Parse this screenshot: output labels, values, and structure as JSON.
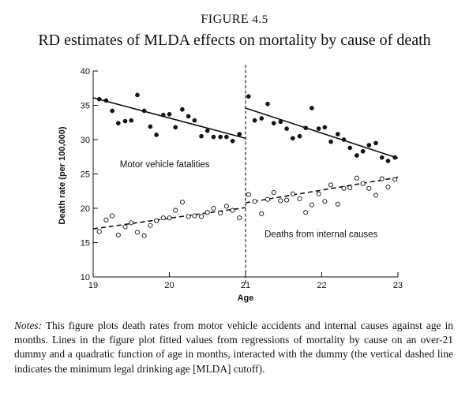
{
  "figure": {
    "number_prefix": "FIGURE",
    "number": "4.5",
    "title": "RD estimates of MLDA effects on mortality by cause of death"
  },
  "notes": {
    "label": "Notes:",
    "text": "This figure plots death rates from motor vehicle accidents and internal causes against age in months. Lines in the figure plot fitted values from regressions of mortality by cause on an over-21 dummy and a quadratic function of age in months, interacted with the dummy (the vertical dashed line indicates the minimum legal drinking age [MLDA] cutoff)."
  },
  "chart_data": {
    "type": "scatter",
    "xlabel": "Age",
    "ylabel": "Death rate (per 100,000)",
    "xlim": [
      19,
      23
    ],
    "ylim": [
      10,
      40
    ],
    "xticks": [
      19,
      20,
      21,
      22,
      23
    ],
    "yticks": [
      10,
      15,
      20,
      25,
      30,
      35,
      40
    ],
    "grid": false,
    "cutoff_x": 21,
    "series": [
      {
        "name": "Motor vehicle fatalities",
        "marker": "filled-circle",
        "color": "#111111",
        "x": [
          19.08,
          19.17,
          19.25,
          19.33,
          19.42,
          19.5,
          19.58,
          19.67,
          19.75,
          19.83,
          19.92,
          20.0,
          20.08,
          20.17,
          20.25,
          20.33,
          20.42,
          20.5,
          20.58,
          20.67,
          20.75,
          20.83,
          20.92,
          21.04,
          21.12,
          21.21,
          21.29,
          21.37,
          21.46,
          21.54,
          21.62,
          21.71,
          21.79,
          21.87,
          21.96,
          22.04,
          22.12,
          22.21,
          22.29,
          22.37,
          22.46,
          22.54,
          22.62,
          22.71,
          22.79,
          22.87,
          22.96
        ],
        "y": [
          35.9,
          35.7,
          34.2,
          32.4,
          32.7,
          32.8,
          36.5,
          34.2,
          31.9,
          30.7,
          33.6,
          33.7,
          31.8,
          34.4,
          33.4,
          32.8,
          30.5,
          31.3,
          30.4,
          30.4,
          30.4,
          29.8,
          30.8,
          36.3,
          32.8,
          33.1,
          35.2,
          32.4,
          32.6,
          31.6,
          30.2,
          30.5,
          31.7,
          34.6,
          31.6,
          31.8,
          29.7,
          30.8,
          30.0,
          28.8,
          27.7,
          28.3,
          29.2,
          29.5,
          27.4,
          26.9,
          27.4
        ],
        "fit_left": {
          "x0": 19.0,
          "y0": 36.1,
          "x1": 21.0,
          "y1": 30.2
        },
        "fit_right": {
          "x0": 21.0,
          "y0": 34.6,
          "x1": 23.0,
          "y1": 27.3
        }
      },
      {
        "name": "Deaths from internal causes",
        "marker": "open-circle",
        "color": "#111111",
        "x": [
          19.08,
          19.17,
          19.25,
          19.33,
          19.42,
          19.5,
          19.58,
          19.67,
          19.75,
          19.83,
          19.92,
          20.0,
          20.08,
          20.17,
          20.25,
          20.33,
          20.42,
          20.5,
          20.58,
          20.67,
          20.75,
          20.83,
          20.92,
          21.04,
          21.12,
          21.21,
          21.29,
          21.37,
          21.46,
          21.54,
          21.62,
          21.71,
          21.79,
          21.87,
          21.96,
          22.04,
          22.12,
          22.21,
          22.29,
          22.37,
          22.46,
          22.54,
          22.62,
          22.71,
          22.79,
          22.87,
          22.96
        ],
        "y": [
          16.6,
          18.3,
          18.9,
          16.1,
          17.3,
          17.9,
          16.5,
          16.0,
          17.5,
          18.2,
          18.6,
          18.6,
          19.7,
          20.9,
          18.8,
          18.9,
          18.8,
          19.4,
          20.0,
          19.3,
          20.3,
          19.7,
          18.6,
          22.0,
          21.0,
          19.2,
          21.3,
          22.3,
          21.1,
          21.2,
          22.1,
          21.4,
          19.4,
          20.5,
          22.1,
          21.0,
          23.4,
          20.6,
          22.9,
          23.0,
          24.4,
          23.6,
          22.9,
          21.9,
          24.3,
          23.1,
          24.2
        ],
        "fit_left": {
          "x0": 19.0,
          "y0": 17.0,
          "x1": 21.0,
          "y1": 20.1
        },
        "fit_right": {
          "x0": 21.0,
          "y0": 20.8,
          "x1": 23.0,
          "y1": 24.5
        }
      }
    ]
  }
}
